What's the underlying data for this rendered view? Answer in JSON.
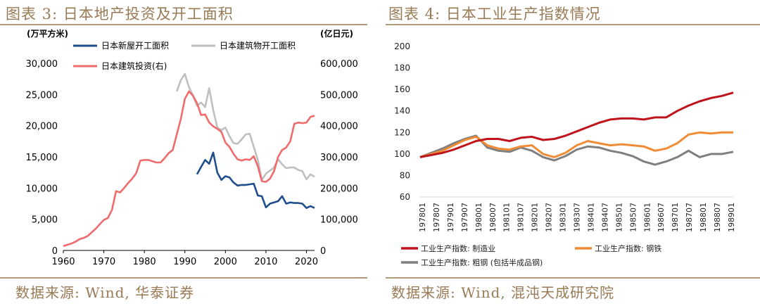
{
  "left": {
    "title": "图表 3: 日本地产投资及开工面积",
    "source": "数据来源: Wind, 华泰证券",
    "chart_data": {
      "type": "line",
      "left_unit": "(万平方米)",
      "right_unit": "(亿日元)",
      "x_ticks": [
        "1960",
        "1970",
        "1980",
        "1990",
        "2000",
        "2010",
        "2020"
      ],
      "xlim": [
        1960,
        2022
      ],
      "y_left_ticks": [
        "0",
        "5,000",
        "10,000",
        "15,000",
        "20,000",
        "25,000",
        "30,000"
      ],
      "ylim_left": [
        0,
        30000
      ],
      "y_right_ticks": [
        "0",
        "100,000",
        "200,000",
        "300,000",
        "400,000",
        "500,000",
        "600,000"
      ],
      "ylim_right": [
        0,
        600000
      ],
      "series": [
        {
          "name": "日本新屋开工面积",
          "color": "#1f4e8c",
          "axis": "left",
          "x": [
            1993,
            1994,
            1995,
            1996,
            1997,
            1998,
            1999,
            2000,
            2001,
            2002,
            2003,
            2004,
            2005,
            2006,
            2007,
            2008,
            2009,
            2010,
            2011,
            2012,
            2013,
            2014,
            2015,
            2016,
            2017,
            2018,
            2019,
            2020,
            2021,
            2022
          ],
          "y": [
            12200,
            13400,
            14500,
            13900,
            15700,
            12500,
            11300,
            11900,
            11700,
            10900,
            10400,
            10500,
            10500,
            10600,
            10700,
            8800,
            8700,
            6900,
            7500,
            7700,
            7900,
            8700,
            7500,
            7700,
            7600,
            7600,
            7500,
            6800,
            7100,
            6800
          ]
        },
        {
          "name": "日本建筑物开工面积",
          "color": "#bfbfbf",
          "axis": "left",
          "x": [
            1988,
            1989,
            1990,
            1991,
            1992,
            1993,
            1994,
            1995,
            1996,
            1997,
            1998,
            1999,
            2000,
            2001,
            2002,
            2003,
            2004,
            2005,
            2006,
            2007,
            2008,
            2009,
            2010,
            2011,
            2012,
            2013,
            2014,
            2015,
            2016,
            2017,
            2018,
            2019,
            2020,
            2021,
            2022
          ],
          "y": [
            25500,
            27300,
            28300,
            26200,
            24800,
            23200,
            23700,
            23000,
            26000,
            22500,
            19700,
            19300,
            19700,
            18300,
            17200,
            17100,
            17800,
            18600,
            18700,
            16600,
            14500,
            11300,
            12300,
            12800,
            13300,
            14600,
            13800,
            13200,
            13300,
            13300,
            12900,
            12700,
            11400,
            12200,
            11800
          ]
        },
        {
          "name": "日本建筑投资(右)",
          "color": "#f06b6b",
          "axis": "right",
          "x": [
            1960,
            1961,
            1962,
            1963,
            1964,
            1965,
            1966,
            1967,
            1968,
            1969,
            1970,
            1971,
            1972,
            1973,
            1974,
            1975,
            1976,
            1977,
            1978,
            1979,
            1980,
            1981,
            1982,
            1983,
            1984,
            1985,
            1986,
            1987,
            1988,
            1989,
            1990,
            1991,
            1992,
            1993,
            1994,
            1995,
            1996,
            1997,
            1998,
            1999,
            2000,
            2001,
            2002,
            2003,
            2004,
            2005,
            2006,
            2007,
            2008,
            2009,
            2010,
            2011,
            2012,
            2013,
            2014,
            2015,
            2016,
            2017,
            2018,
            2019,
            2020,
            2021,
            2022
          ],
          "y": [
            14000,
            18000,
            22000,
            28000,
            36000,
            40000,
            46000,
            58000,
            70000,
            84000,
            98000,
            104000,
            130000,
            190000,
            186000,
            200000,
            216000,
            230000,
            248000,
            288000,
            290000,
            290000,
            286000,
            282000,
            282000,
            296000,
            312000,
            322000,
            372000,
            422000,
            486000,
            510000,
            496000,
            472000,
            434000,
            436000,
            410000,
            398000,
            390000,
            380000,
            346000,
            332000,
            310000,
            292000,
            288000,
            292000,
            290000,
            302000,
            270000,
            222000,
            220000,
            230000,
            254000,
            300000,
            322000,
            330000,
            350000,
            406000,
            410000,
            408000,
            410000,
            428000,
            432000
          ]
        }
      ]
    }
  },
  "right": {
    "title": "图表 4: 日本工业生产指数情况",
    "source": "数据来源: Wind, 混沌天成研究院",
    "chart_data": {
      "type": "line",
      "y_ticks": [
        "60",
        "80",
        "100",
        "120",
        "140",
        "160",
        "180",
        "200"
      ],
      "ylim": [
        60,
        200
      ],
      "x_ticks": [
        "197801",
        "197807",
        "197901",
        "197907",
        "198001",
        "198007",
        "198101",
        "198107",
        "198201",
        "198207",
        "198301",
        "198307",
        "198401",
        "198407",
        "198501",
        "198507",
        "198601",
        "198607",
        "198701",
        "198707",
        "198801",
        "198807",
        "198901"
      ],
      "series": [
        {
          "name": "工业生产指数: 制造业",
          "color": "#c0141c",
          "y": [
            97,
            99,
            101,
            104,
            108,
            112,
            114,
            114,
            112,
            115,
            116,
            113,
            114,
            117,
            121,
            125,
            129,
            132,
            133,
            133,
            132,
            134,
            134,
            140,
            145,
            149,
            152,
            154,
            157
          ]
        },
        {
          "name": "工业生产指数: 钢铁",
          "color": "#f08c36",
          "y": [
            97,
            100,
            103,
            108,
            113,
            116,
            108,
            105,
            104,
            107,
            108,
            100,
            97,
            101,
            108,
            112,
            110,
            108,
            109,
            108,
            107,
            103,
            105,
            110,
            118,
            120,
            119,
            120,
            120
          ]
        },
        {
          "name": "工业生产指数: 粗钢 (包括半成品钢)",
          "color": "#7f7f7f",
          "y": [
            97,
            101,
            105,
            110,
            114,
            117,
            106,
            103,
            102,
            106,
            103,
            97,
            94,
            98,
            104,
            107,
            106,
            103,
            101,
            98,
            93,
            90,
            93,
            97,
            103,
            97,
            100,
            100,
            102
          ]
        }
      ]
    }
  }
}
